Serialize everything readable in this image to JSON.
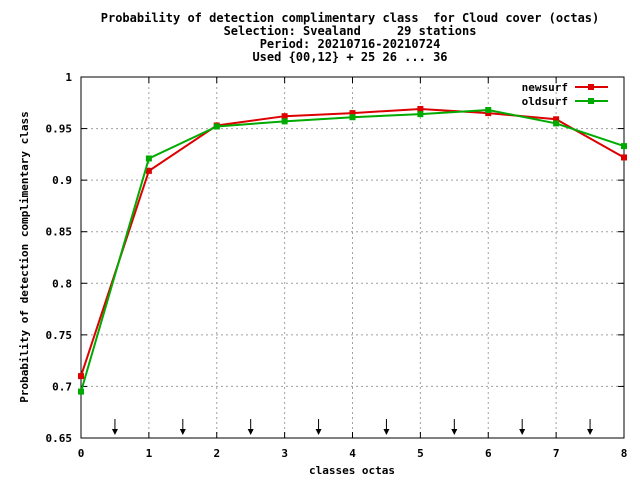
{
  "chart_data": {
    "type": "line",
    "title_lines": [
      "Probability of detection complimentary class  for Cloud cover (octas)",
      "Selection: Svealand     29 stations",
      "Period: 20210716-20210724",
      "Used {00,12} + 25 26 ... 36"
    ],
    "xlabel": "classes octas",
    "ylabel": "Probability of detection complimentary class",
    "xlim": [
      0,
      8
    ],
    "ylim": [
      0.65,
      1.0
    ],
    "x_ticks": [
      "0",
      "1",
      "2",
      "3",
      "4",
      "5",
      "6",
      "7",
      "8"
    ],
    "y_ticks": [
      "0.65",
      "0.7",
      "0.75",
      "0.8",
      "0.85",
      "0.9",
      "0.95",
      "1"
    ],
    "grid": true,
    "legend_position": "top-right",
    "arrow_markers_x": [
      0.5,
      1.5,
      2.5,
      3.5,
      4.5,
      5.5,
      6.5,
      7.5
    ],
    "x": [
      0,
      1,
      2,
      3,
      4,
      5,
      6,
      7,
      8
    ],
    "series": [
      {
        "name": "newsurf",
        "color": "#dd0000",
        "values": [
          0.71,
          0.909,
          0.953,
          0.962,
          0.965,
          0.969,
          0.965,
          0.959,
          0.922
        ]
      },
      {
        "name": "oldsurf",
        "color": "#00aa00",
        "values": [
          0.695,
          0.921,
          0.952,
          0.957,
          0.961,
          0.964,
          0.968,
          0.955,
          0.933
        ]
      }
    ]
  }
}
